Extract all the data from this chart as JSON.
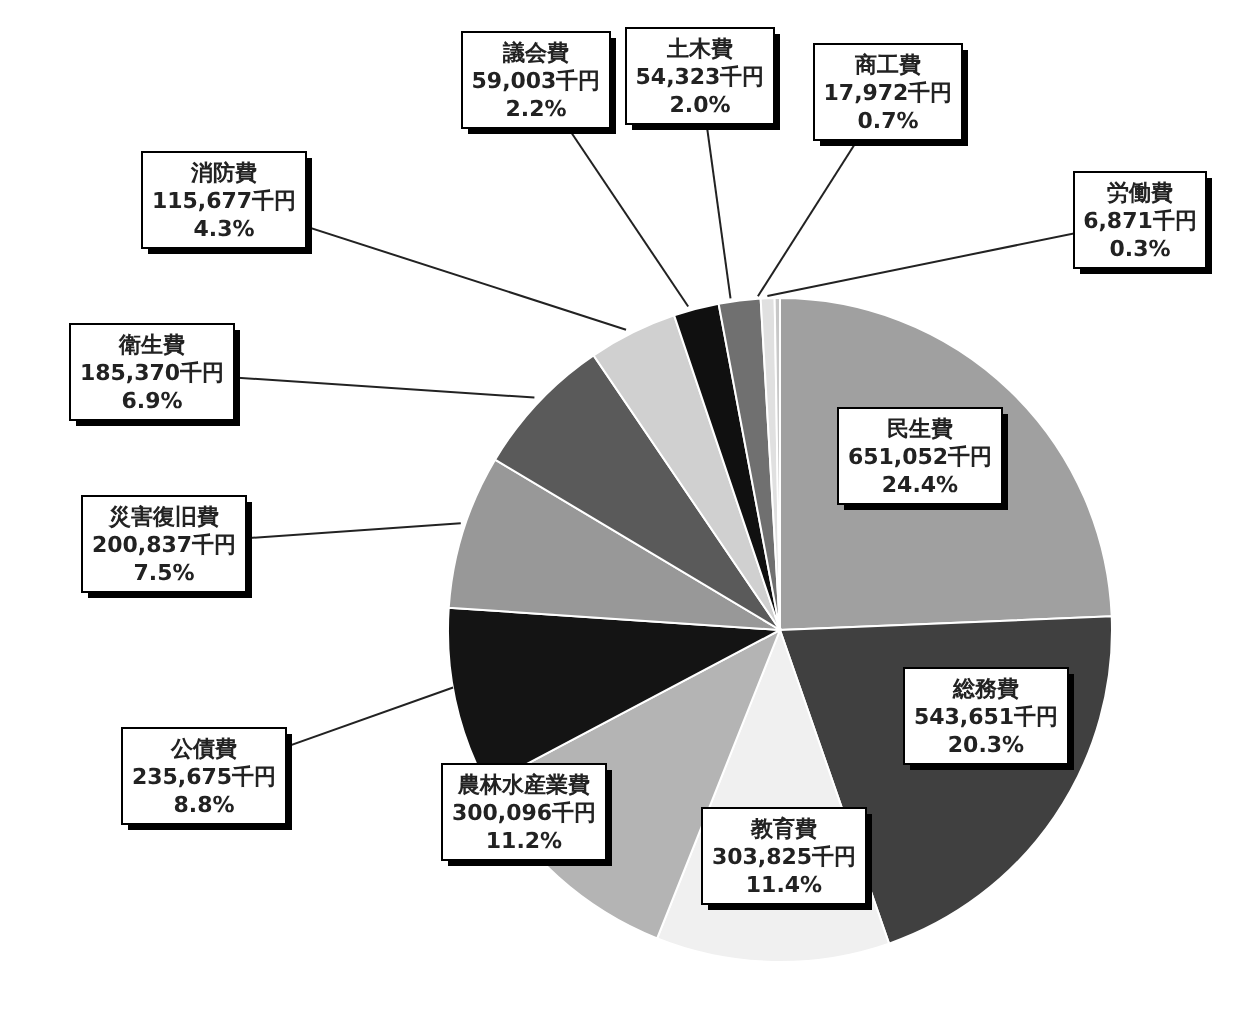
{
  "chart_data": {
    "type": "pie",
    "categories": [
      "民生費",
      "総務費",
      "教育費",
      "農林水産業費",
      "公債費",
      "災害復旧費",
      "衛生費",
      "消防費",
      "議会費",
      "土木費",
      "商工費",
      "労働費"
    ],
    "values": [
      651052,
      543651,
      303825,
      300096,
      235675,
      200837,
      185370,
      115677,
      59003,
      54323,
      17972,
      6871
    ],
    "colors": [
      "#a0a0a0",
      "#404040",
      "#f0f0f0",
      "#b4b4b4",
      "#141414",
      "#989898",
      "#5a5a5a",
      "#d0d0d0",
      "#101010",
      "#707070",
      "#e0e0e0",
      "#c8c8c8"
    ],
    "value_labels": [
      "651,052千円\n24.4%",
      "543,651千円\n20.3%",
      "303,825千円\n11.4%",
      "300,096千円\n11.2%",
      "235,675千円\n8.8%",
      "200,837千円\n7.5%",
      "185,370千円\n6.9%",
      "115,677千円\n4.3%",
      "59,003千円\n2.2%",
      "54,323千円\n2.0%",
      "17,972千円\n0.7%",
      "6,871千円\n0.3%"
    ],
    "legend": false
  }
}
